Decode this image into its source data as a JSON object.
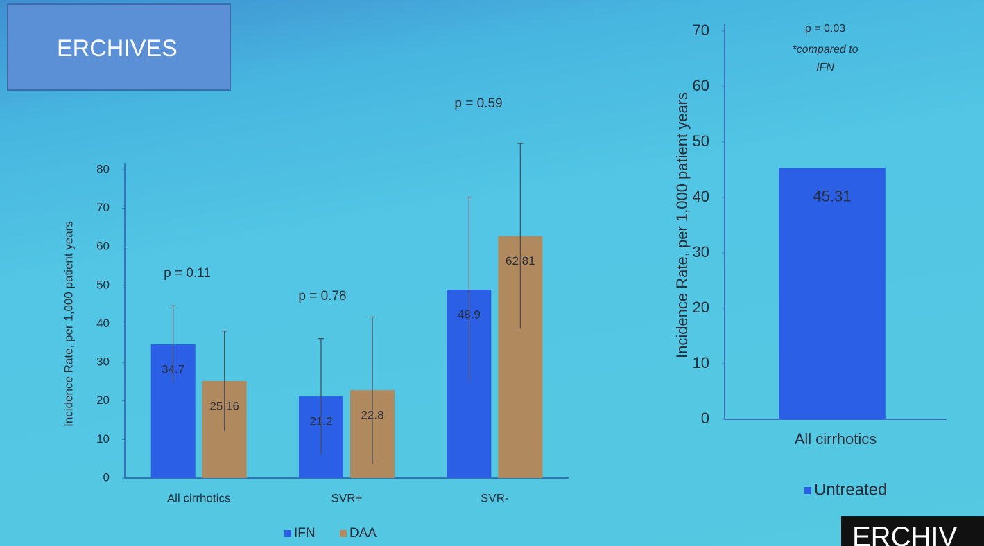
{
  "banner": "ERCHIVES",
  "corner_text": "ERCHIV",
  "chart_data": [
    {
      "type": "bar",
      "ylabel": "Incidence Rate, per 1,000 patient years",
      "categories": [
        "All cirrhotics",
        "SVR+",
        "SVR-"
      ],
      "series": [
        {
          "name": "IFN",
          "color": "#2b5fe6",
          "values": [
            34.7,
            21.2,
            48.9
          ],
          "errors": [
            10,
            15,
            24
          ]
        },
        {
          "name": "DAA",
          "color": "#b08a5e",
          "values": [
            25.16,
            22.8,
            62.81
          ],
          "errors": [
            13,
            19,
            24
          ]
        }
      ],
      "annotations": [
        "p = 0.11",
        "p = 0.78",
        "p = 0.59"
      ],
      "ylim": [
        0,
        80
      ],
      "yticks": [
        0,
        10,
        20,
        30,
        40,
        50,
        60,
        70,
        80
      ],
      "legend": "bottom"
    },
    {
      "type": "bar",
      "ylabel": "Incidence Rate, per 1,000 patient years",
      "categories": [
        "All cirrhotics"
      ],
      "series": [
        {
          "name": "Untreated",
          "color": "#2b5fe6",
          "values": [
            45.31
          ]
        }
      ],
      "annotations": [
        "p = 0.03",
        "*compared to",
        "IFN"
      ],
      "ylim": [
        0,
        70
      ],
      "yticks": [
        0,
        10,
        20,
        30,
        40,
        50,
        60,
        70
      ],
      "legend": "bottom"
    }
  ]
}
